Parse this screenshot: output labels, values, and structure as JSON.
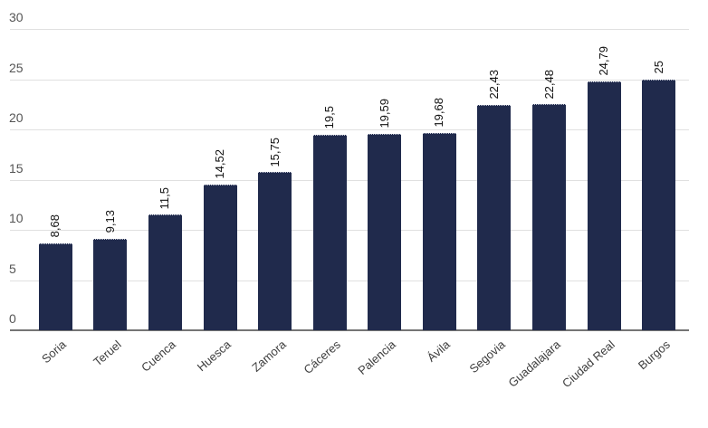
{
  "chart_data": {
    "type": "bar",
    "categories": [
      "Soria",
      "Teruel",
      "Cuenca",
      "Huesca",
      "Zamora",
      "Cáceres",
      "Palencia",
      "Ávila",
      "Segovia",
      "Guadalajara",
      "Ciudad Real",
      "Burgos"
    ],
    "values": [
      8.68,
      9.13,
      11.5,
      14.52,
      15.75,
      19.5,
      19.59,
      19.68,
      22.43,
      22.48,
      24.79,
      25
    ],
    "value_labels": [
      "8,68",
      "9,13",
      "11,5",
      "14,52",
      "15,75",
      "19,5",
      "19,59",
      "19,68",
      "22,43",
      "22,48",
      "24,79",
      "25"
    ],
    "yticks": [
      0,
      5,
      10,
      15,
      20,
      25,
      30
    ],
    "ytick_labels": [
      "0",
      "5",
      "10",
      "15",
      "20",
      "25",
      "30"
    ],
    "ylim": [
      0,
      30
    ],
    "xlabel": "",
    "ylabel": "",
    "grid": true,
    "legend": "none",
    "bar_color": "#202a4c",
    "colors": {
      "background": "#ffffff",
      "grid": "#e0e0e0",
      "axis": "#757575",
      "ytick_text": "#555555",
      "xtick_text": "#3d3d3d",
      "value_text": "#111111"
    }
  }
}
